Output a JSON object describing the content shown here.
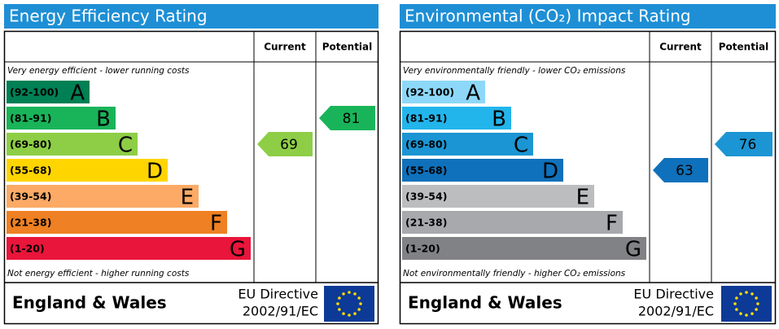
{
  "panels": [
    {
      "title": "Energy Efficiency Rating",
      "columns": [
        "Current",
        "Potential"
      ],
      "top_note": "Very energy efficient - lower running costs",
      "bottom_note": "Not energy efficient - higher running costs",
      "bands": [
        {
          "range": "(92-100)",
          "letter": "A",
          "color": "#008054"
        },
        {
          "range": "(81-91)",
          "letter": "B",
          "color": "#19b459"
        },
        {
          "range": "(69-80)",
          "letter": "C",
          "color": "#8dce46"
        },
        {
          "range": "(55-68)",
          "letter": "D",
          "color": "#ffd500"
        },
        {
          "range": "(39-54)",
          "letter": "E",
          "color": "#fcaa65"
        },
        {
          "range": "(21-38)",
          "letter": "F",
          "color": "#ef8023"
        },
        {
          "range": "(1-20)",
          "letter": "G",
          "color": "#e9153b"
        }
      ],
      "current": 69,
      "potential": 81,
      "footer": {
        "region": "England & Wales",
        "directive": "EU Directive",
        "code": "2002/91/EC"
      }
    },
    {
      "title": "Environmental (CO₂) Impact Rating",
      "columns": [
        "Current",
        "Potential"
      ],
      "top_note": "Very environmentally friendly - lower CO₂ emissions",
      "bottom_note": "Not environmentally friendly - higher CO₂ emissions",
      "bands": [
        {
          "range": "(92-100)",
          "letter": "A",
          "color": "#8dd8f8"
        },
        {
          "range": "(81-91)",
          "letter": "B",
          "color": "#22b5eb"
        },
        {
          "range": "(69-80)",
          "letter": "C",
          "color": "#1b95d3"
        },
        {
          "range": "(55-68)",
          "letter": "D",
          "color": "#0f71bb"
        },
        {
          "range": "(39-54)",
          "letter": "E",
          "color": "#bbbdbf"
        },
        {
          "range": "(21-38)",
          "letter": "F",
          "color": "#a8a9ad"
        },
        {
          "range": "(1-20)",
          "letter": "G",
          "color": "#818286"
        }
      ],
      "current": 63,
      "potential": 76,
      "footer": {
        "region": "England & Wales",
        "directive": "EU Directive",
        "code": "2002/91/EC"
      }
    }
  ]
}
